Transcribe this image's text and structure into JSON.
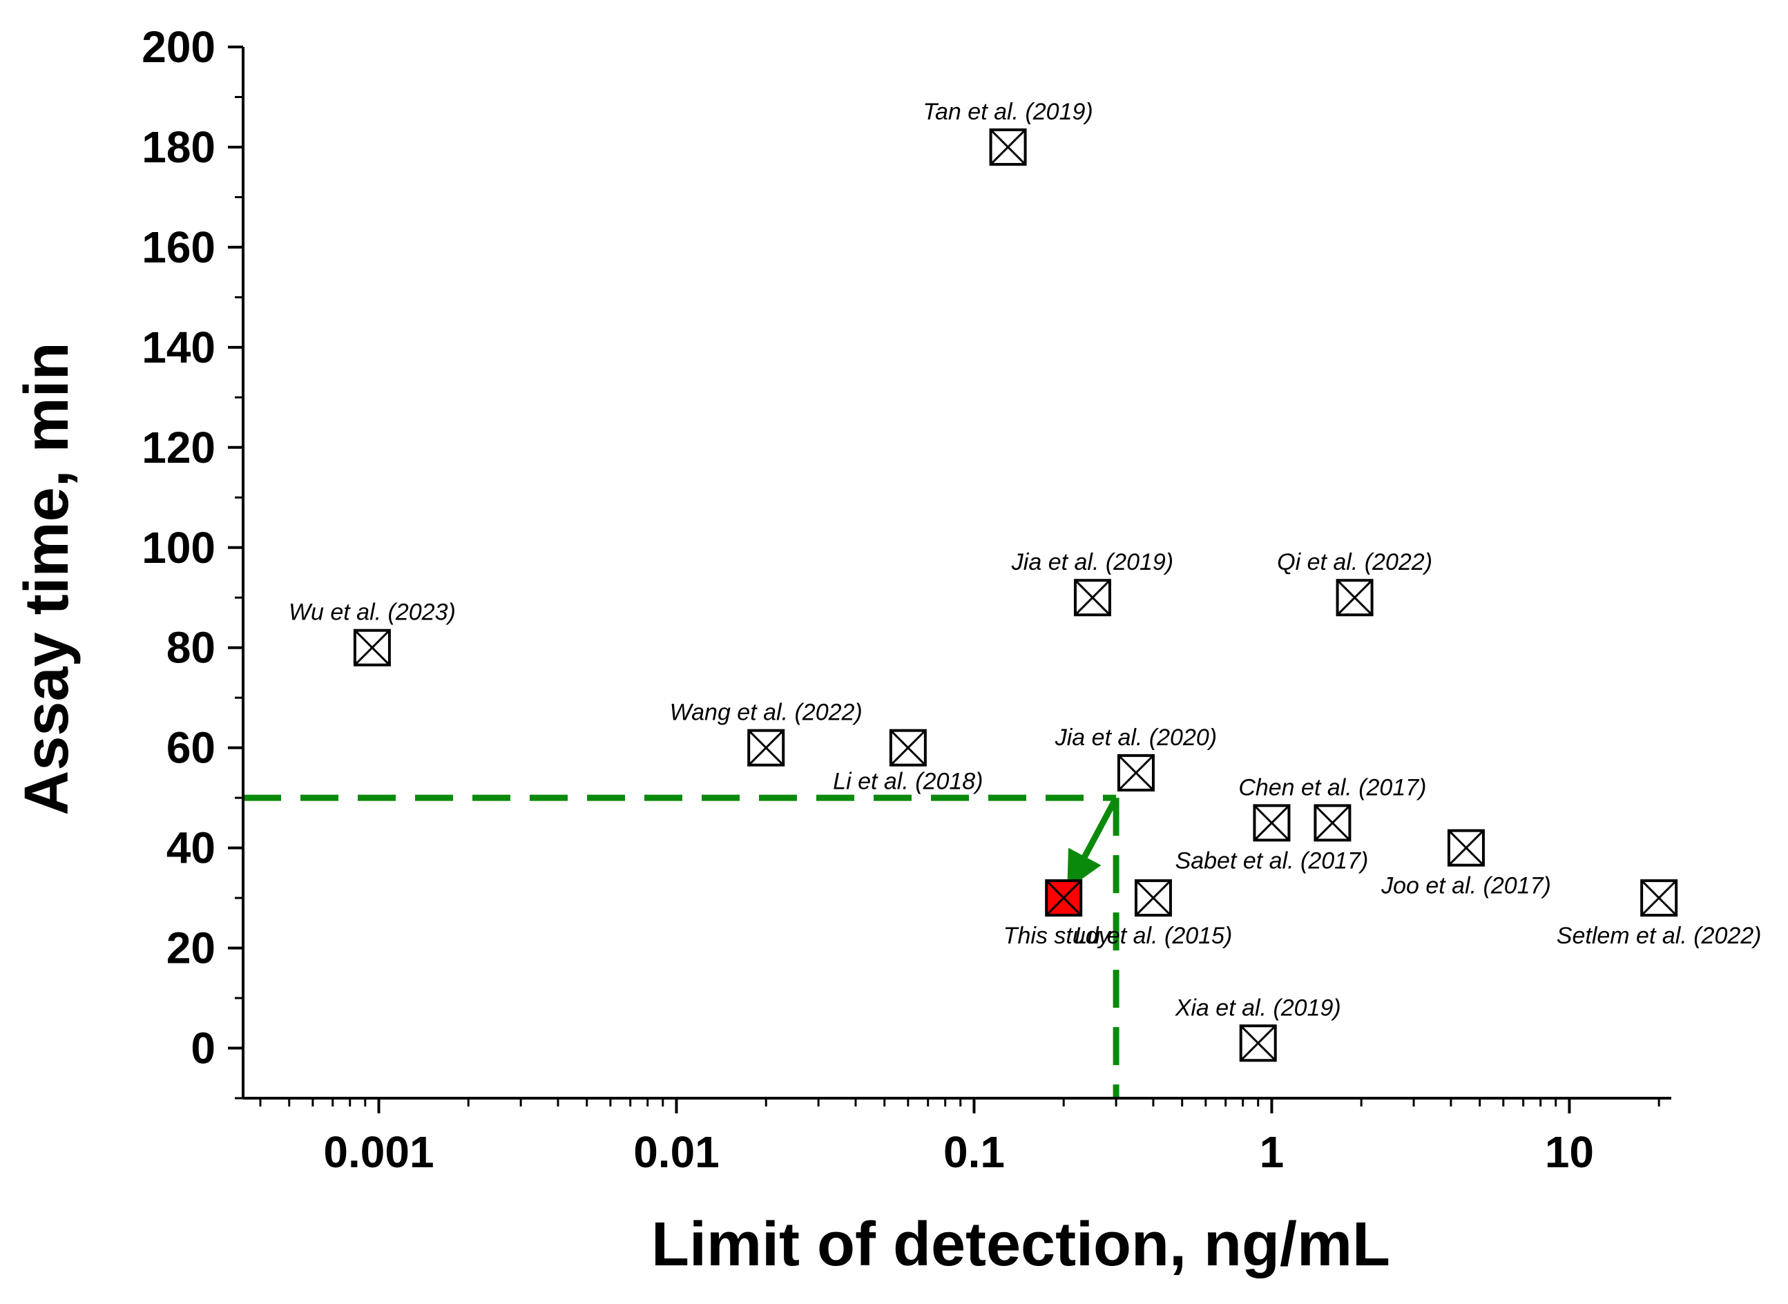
{
  "chart_data": {
    "type": "scatter",
    "title": "",
    "xlabel": "Limit of detection, ng/mL",
    "ylabel": "Assay time, min",
    "xscale": "log",
    "xlim": [
      0.00035,
      22
    ],
    "ylim": [
      -10,
      200
    ],
    "x_ticks": [
      0.001,
      0.01,
      0.1,
      1,
      10
    ],
    "x_tick_labels": [
      "0.001",
      "0.01",
      "0.1",
      "1",
      "10"
    ],
    "y_ticks": [
      0,
      20,
      40,
      60,
      80,
      100,
      120,
      140,
      160,
      180,
      200
    ],
    "y_tick_labels": [
      "0",
      "20",
      "40",
      "60",
      "80",
      "100",
      "120",
      "140",
      "160",
      "180",
      "200"
    ],
    "grid": false,
    "colors": {
      "marker": "#000000",
      "highlight": "#ff0000",
      "guide": "#0a8a0a"
    },
    "points": [
      {
        "label": "Wu et al. (2023)",
        "x": 0.00095,
        "y": 80,
        "highlight": false,
        "label_pos": "above"
      },
      {
        "label": "Wang et al. (2022)",
        "x": 0.02,
        "y": 60,
        "highlight": false,
        "label_pos": "above"
      },
      {
        "label": "Li et al. (2018)",
        "x": 0.06,
        "y": 60,
        "highlight": false,
        "label_pos": "below"
      },
      {
        "label": "Tan et al. (2019)",
        "x": 0.13,
        "y": 180,
        "highlight": false,
        "label_pos": "above"
      },
      {
        "label": "Jia et al. (2019)",
        "x": 0.25,
        "y": 90,
        "highlight": false,
        "label_pos": "above"
      },
      {
        "label": "Jia et al. (2020)",
        "x": 0.35,
        "y": 55,
        "highlight": false,
        "label_pos": "above"
      },
      {
        "label": "Lu et al. (2015)",
        "x": 0.4,
        "y": 30,
        "highlight": false,
        "label_pos": "below"
      },
      {
        "label": "This study",
        "x": 0.2,
        "y": 30,
        "highlight": true,
        "label_pos": "below-left"
      },
      {
        "label": "Sabet et al. (2017)",
        "x": 1.0,
        "y": 45,
        "highlight": false,
        "label_pos": "below"
      },
      {
        "label": "Chen et al. (2017)",
        "x": 1.6,
        "y": 45,
        "highlight": false,
        "label_pos": "above"
      },
      {
        "label": "Qi et al. (2022)",
        "x": 1.9,
        "y": 90,
        "highlight": false,
        "label_pos": "above"
      },
      {
        "label": "Xia et al. (2019)",
        "x": 0.9,
        "y": 1,
        "highlight": false,
        "label_pos": "above"
      },
      {
        "label": "Joo et al. (2017)",
        "x": 4.5,
        "y": 40,
        "highlight": false,
        "label_pos": "below"
      },
      {
        "label": "Setlem et al. (2022)",
        "x": 20,
        "y": 30,
        "highlight": false,
        "label_pos": "below"
      }
    ],
    "reference_lines": {
      "x": 0.3,
      "y": 50
    },
    "arrow": {
      "from": [
        0.3,
        50
      ],
      "to": [
        0.22,
        35
      ]
    }
  }
}
